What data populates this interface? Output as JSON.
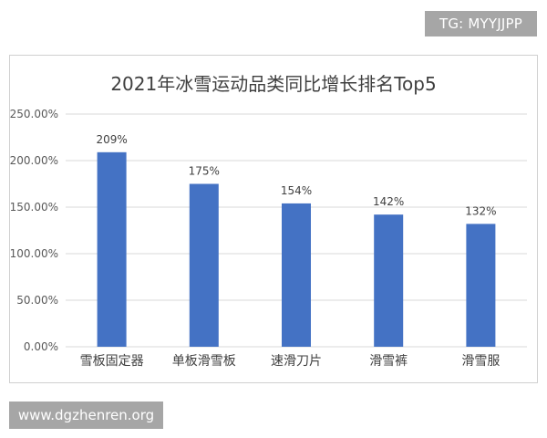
{
  "watermark_top": "TG: MYYJJPP",
  "watermark_bottom": "www.dgzhenren.org",
  "chart_data": {
    "type": "bar",
    "title": "2021年冰雪运动品类同比增长排名Top5",
    "categories": [
      "雪板固定器",
      "单板滑雪板",
      "速滑刀片",
      "滑雪裤",
      "滑雪服"
    ],
    "values": [
      209,
      175,
      154,
      142,
      132
    ],
    "value_labels": [
      "209%",
      "175%",
      "154%",
      "142%",
      "132%"
    ],
    "ylim": [
      0,
      250
    ],
    "yticks": [
      0,
      50,
      100,
      150,
      200,
      250
    ],
    "ytick_labels": [
      "0.00%",
      "50.00%",
      "100.00%",
      "150.00%",
      "200.00%",
      "250.00%"
    ],
    "grid": true,
    "bar_color": "#4472c4",
    "grid_color": "#d9d9d9",
    "xlabel": "",
    "ylabel": ""
  }
}
